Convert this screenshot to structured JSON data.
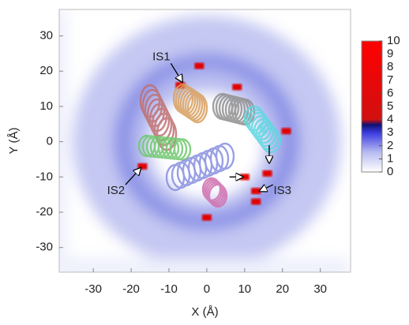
{
  "chart_data": {
    "type": "density-map",
    "xlabel": "X (Å)",
    "ylabel": "Y (Å)",
    "xlim": [
      -39,
      38
    ],
    "ylim": [
      -37,
      37.5
    ],
    "xticks": [
      -30,
      -20,
      -10,
      0,
      10,
      20,
      30
    ],
    "yticks": [
      -30,
      -20,
      -10,
      0,
      10,
      20,
      30
    ],
    "colorbar": {
      "lim": [
        0,
        10
      ],
      "ticks": [
        0,
        1,
        2,
        3,
        4,
        5,
        6,
        7,
        8,
        9,
        10
      ]
    },
    "hotspots": {
      "x": [
        -2,
        -7,
        8,
        -17,
        10,
        16,
        13,
        21,
        13,
        0
      ],
      "y": [
        21.5,
        16,
        15.5,
        -7,
        -10,
        -9,
        -14,
        3,
        -17,
        -21.5
      ]
    },
    "annotations": [
      {
        "text": "IS1",
        "x": -12,
        "y": 24,
        "tx": -6.5,
        "ty": 17
      },
      {
        "text": "IS2",
        "x": -24,
        "y": -14,
        "tx": -17.5,
        "ty": -7.5
      },
      {
        "text": "IS3",
        "x": 20,
        "y": -14,
        "tx": 14,
        "ty": -14
      }
    ]
  }
}
